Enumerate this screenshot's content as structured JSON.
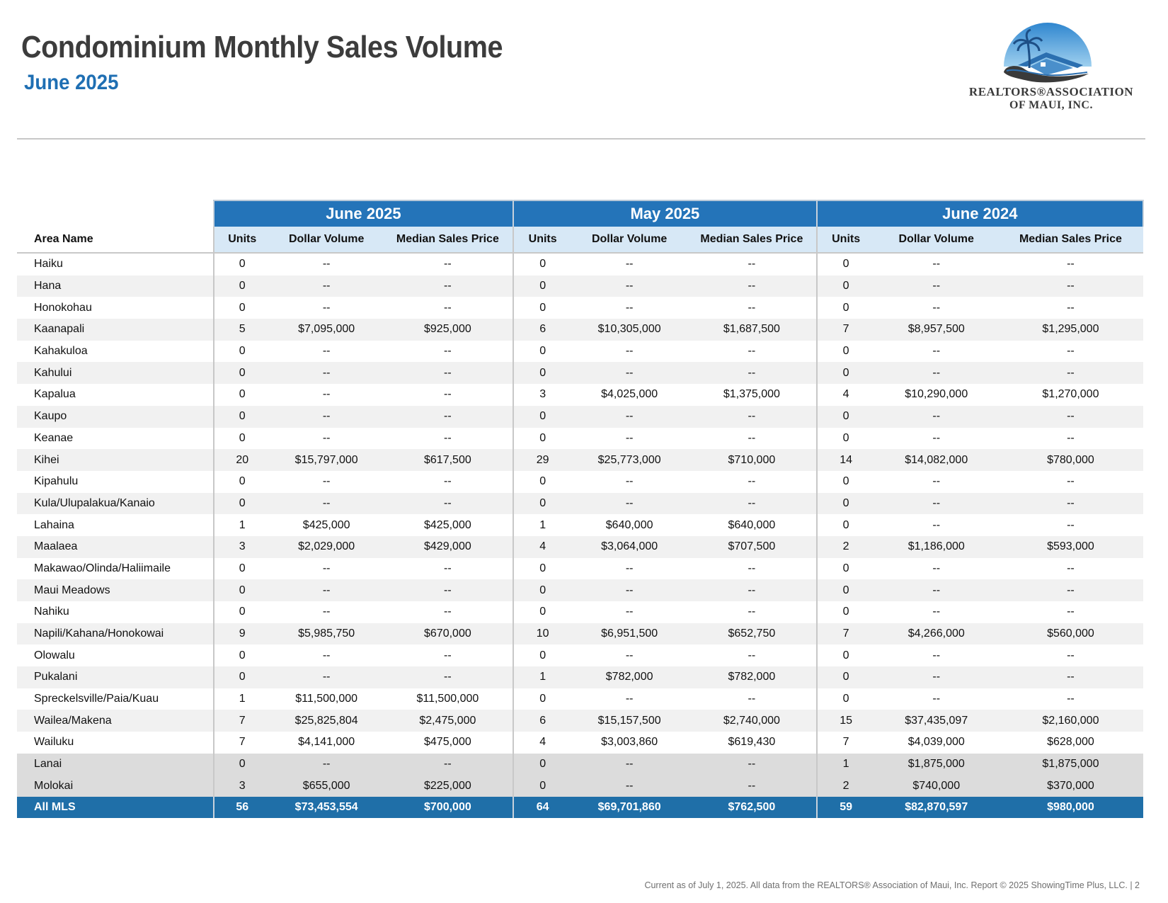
{
  "header": {
    "title": "Condominium Monthly Sales Volume",
    "subtitle": "June 2025"
  },
  "logo": {
    "line1": "REALTORS®ASSOCIATION",
    "line2": "OF MAUI, INC.",
    "colors": {
      "sky": "#3f9ad6",
      "roof": "#2b6fb0",
      "swoosh": "#3a3a3a",
      "palm": "#1d4f86"
    }
  },
  "table": {
    "periods": [
      "June 2025",
      "May 2025",
      "June 2024"
    ],
    "area_header": "Area Name",
    "column_headers": [
      "Units",
      "Dollar Volume",
      "Median Sales Price"
    ],
    "rows": [
      [
        "Haiku",
        "0",
        "--",
        "--",
        "0",
        "--",
        "--",
        "0",
        "--",
        "--"
      ],
      [
        "Hana",
        "0",
        "--",
        "--",
        "0",
        "--",
        "--",
        "0",
        "--",
        "--"
      ],
      [
        "Honokohau",
        "0",
        "--",
        "--",
        "0",
        "--",
        "--",
        "0",
        "--",
        "--"
      ],
      [
        "Kaanapali",
        "5",
        "$7,095,000",
        "$925,000",
        "6",
        "$10,305,000",
        "$1,687,500",
        "7",
        "$8,957,500",
        "$1,295,000"
      ],
      [
        "Kahakuloa",
        "0",
        "--",
        "--",
        "0",
        "--",
        "--",
        "0",
        "--",
        "--"
      ],
      [
        "Kahului",
        "0",
        "--",
        "--",
        "0",
        "--",
        "--",
        "0",
        "--",
        "--"
      ],
      [
        "Kapalua",
        "0",
        "--",
        "--",
        "3",
        "$4,025,000",
        "$1,375,000",
        "4",
        "$10,290,000",
        "$1,270,000"
      ],
      [
        "Kaupo",
        "0",
        "--",
        "--",
        "0",
        "--",
        "--",
        "0",
        "--",
        "--"
      ],
      [
        "Keanae",
        "0",
        "--",
        "--",
        "0",
        "--",
        "--",
        "0",
        "--",
        "--"
      ],
      [
        "Kihei",
        "20",
        "$15,797,000",
        "$617,500",
        "29",
        "$25,773,000",
        "$710,000",
        "14",
        "$14,082,000",
        "$780,000"
      ],
      [
        "Kipahulu",
        "0",
        "--",
        "--",
        "0",
        "--",
        "--",
        "0",
        "--",
        "--"
      ],
      [
        "Kula/Ulupalakua/Kanaio",
        "0",
        "--",
        "--",
        "0",
        "--",
        "--",
        "0",
        "--",
        "--"
      ],
      [
        "Lahaina",
        "1",
        "$425,000",
        "$425,000",
        "1",
        "$640,000",
        "$640,000",
        "0",
        "--",
        "--"
      ],
      [
        "Maalaea",
        "3",
        "$2,029,000",
        "$429,000",
        "4",
        "$3,064,000",
        "$707,500",
        "2",
        "$1,186,000",
        "$593,000"
      ],
      [
        "Makawao/Olinda/Haliimaile",
        "0",
        "--",
        "--",
        "0",
        "--",
        "--",
        "0",
        "--",
        "--"
      ],
      [
        "Maui Meadows",
        "0",
        "--",
        "--",
        "0",
        "--",
        "--",
        "0",
        "--",
        "--"
      ],
      [
        "Nahiku",
        "0",
        "--",
        "--",
        "0",
        "--",
        "--",
        "0",
        "--",
        "--"
      ],
      [
        "Napili/Kahana/Honokowai",
        "9",
        "$5,985,750",
        "$670,000",
        "10",
        "$6,951,500",
        "$652,750",
        "7",
        "$4,266,000",
        "$560,000"
      ],
      [
        "Olowalu",
        "0",
        "--",
        "--",
        "0",
        "--",
        "--",
        "0",
        "--",
        "--"
      ],
      [
        "Pukalani",
        "0",
        "--",
        "--",
        "1",
        "$782,000",
        "$782,000",
        "0",
        "--",
        "--"
      ],
      [
        "Spreckelsville/Paia/Kuau",
        "1",
        "$11,500,000",
        "$11,500,000",
        "0",
        "--",
        "--",
        "0",
        "--",
        "--"
      ],
      [
        "Wailea/Makena",
        "7",
        "$25,825,804",
        "$2,475,000",
        "6",
        "$15,157,500",
        "$2,740,000",
        "15",
        "$37,435,097",
        "$2,160,000"
      ],
      [
        "Wailuku",
        "7",
        "$4,141,000",
        "$475,000",
        "4",
        "$3,003,860",
        "$619,430",
        "7",
        "$4,039,000",
        "$628,000"
      ]
    ],
    "island_rows": [
      [
        "Lanai",
        "0",
        "--",
        "--",
        "0",
        "--",
        "--",
        "1",
        "$1,875,000",
        "$1,875,000"
      ],
      [
        "Molokai",
        "3",
        "$655,000",
        "$225,000",
        "0",
        "--",
        "--",
        "2",
        "$740,000",
        "$370,000"
      ]
    ],
    "total_row": [
      "All MLS",
      "56",
      "$73,453,554",
      "$700,000",
      "64",
      "$69,701,860",
      "$762,500",
      "59",
      "$82,870,597",
      "$980,000"
    ]
  },
  "footer": {
    "text": "Current as of July 1, 2025. All data from the REALTORS® Association of Maui, Inc. Report © 2025 ShowingTime Plus, LLC.  |  2"
  }
}
